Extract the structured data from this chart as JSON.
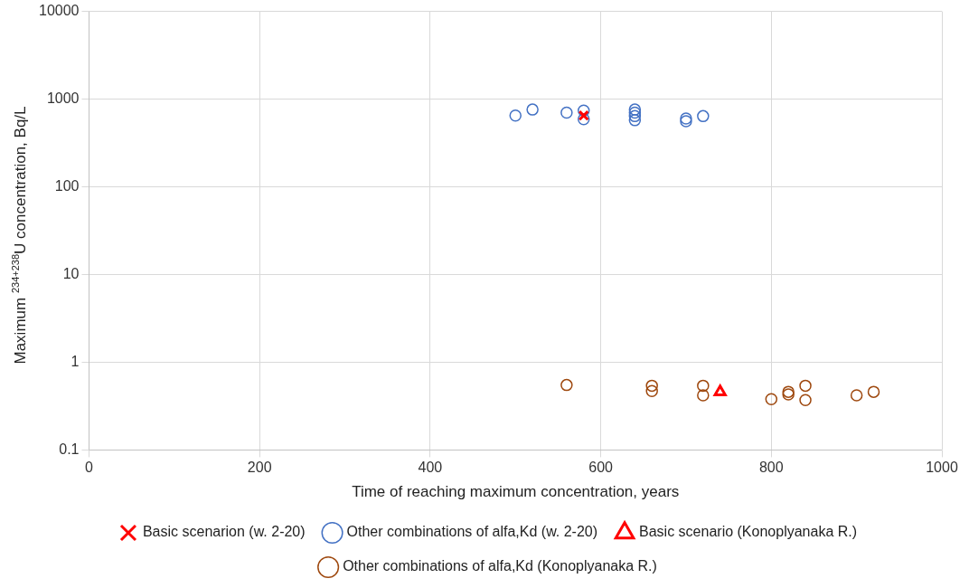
{
  "chart_data": {
    "type": "scatter",
    "xlabel": "Time of reaching maximum concentration, years",
    "ylabel": "Maximum $^{234+238}$U concentration, Bq/L",
    "xlim": [
      0,
      1000
    ],
    "xticks": [
      0,
      200,
      400,
      600,
      800,
      1000
    ],
    "ylim": [
      0.1,
      10000
    ],
    "yticks": [
      0.1,
      1,
      10,
      100,
      1000,
      10000
    ],
    "log": "y",
    "grid": true,
    "legend": "bottom",
    "series": [
      {
        "name": "Basic scenarion (w. 2-20)",
        "color": "#ff0000",
        "marker": "cross",
        "x": [
          580
        ],
        "values": [
          650
        ]
      },
      {
        "name": "Other combinations of alfa,Kd (w. 2-20)",
        "color": "#4472c4",
        "marker": "circle",
        "x": [
          500,
          520,
          560,
          580,
          580,
          640,
          640,
          640,
          640,
          700,
          700,
          720
        ],
        "values": [
          650,
          760,
          700,
          740,
          590,
          760,
          700,
          640,
          575,
          600,
          560,
          640
        ]
      },
      {
        "name": "Basic scenario (Konoplyanaka R.)",
        "color": "#ff0000",
        "marker": "triangle",
        "x": [
          740
        ],
        "values": [
          0.46
        ]
      },
      {
        "name": "Other combinations of alfa,Kd (Konoplyanaka R.)",
        "color": "#9e480e",
        "marker": "circle",
        "x": [
          560,
          660,
          660,
          720,
          720,
          800,
          820,
          820,
          840,
          840,
          900,
          920
        ],
        "values": [
          0.55,
          0.54,
          0.47,
          0.54,
          0.42,
          0.38,
          0.46,
          0.43,
          0.54,
          0.37,
          0.42,
          0.46
        ]
      }
    ]
  }
}
